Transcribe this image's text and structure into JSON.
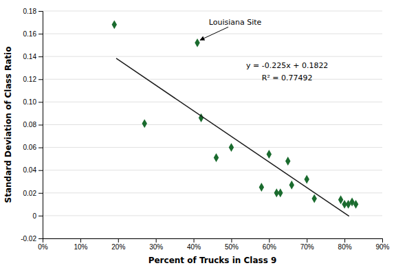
{
  "chart_data": {
    "type": "scatter",
    "xlabel": "Percent of Trucks in Class 9",
    "ylabel": "Standard Deviation of Class Ratio",
    "series": [
      {
        "type": "scatter",
        "marker": "diamond",
        "color": "#1a6b2e",
        "x": [
          0.19,
          0.27,
          0.41,
          0.42,
          0.46,
          0.5,
          0.58,
          0.6,
          0.62,
          0.63,
          0.65,
          0.66,
          0.7,
          0.72,
          0.79,
          0.8,
          0.81,
          0.82,
          0.83
        ],
        "values": [
          0.168,
          0.081,
          0.152,
          0.086,
          0.051,
          0.06,
          0.025,
          0.054,
          0.02,
          0.02,
          0.048,
          0.027,
          0.032,
          0.015,
          0.014,
          0.01,
          0.01,
          0.012,
          0.01
        ]
      },
      {
        "type": "line",
        "color": "#1a1a1a",
        "x": [
          0.195,
          0.812
        ],
        "values": [
          0.138325,
          -0.0005
        ]
      }
    ],
    "annotations": [
      {
        "text": "y = -0.225x + 0.1822"
      },
      {
        "text": "R² = 0.77492"
      },
      {
        "text": "Louisiana Site",
        "x": 0.41,
        "y": 0.152
      }
    ],
    "xlim": [
      0.0,
      0.9
    ],
    "ylim": [
      -0.02,
      0.18
    ],
    "xticks": [
      {
        "value": 0.0,
        "label": "0%"
      },
      {
        "value": 0.1,
        "label": "10%"
      },
      {
        "value": 0.2,
        "label": "20%"
      },
      {
        "value": 0.3,
        "label": "30%"
      },
      {
        "value": 0.4,
        "label": "40%"
      },
      {
        "value": 0.5,
        "label": "50%"
      },
      {
        "value": 0.6,
        "label": "60%"
      },
      {
        "value": 0.7,
        "label": "70%"
      },
      {
        "value": 0.8,
        "label": "80%"
      },
      {
        "value": 0.9,
        "label": "90%"
      }
    ],
    "yticks": [
      -0.02,
      0,
      0.02,
      0.04,
      0.06,
      0.08,
      {
        "value": 0.1,
        "label": "0.10"
      },
      0.12,
      0.14,
      0.16,
      0.18
    ],
    "grid": "y"
  }
}
